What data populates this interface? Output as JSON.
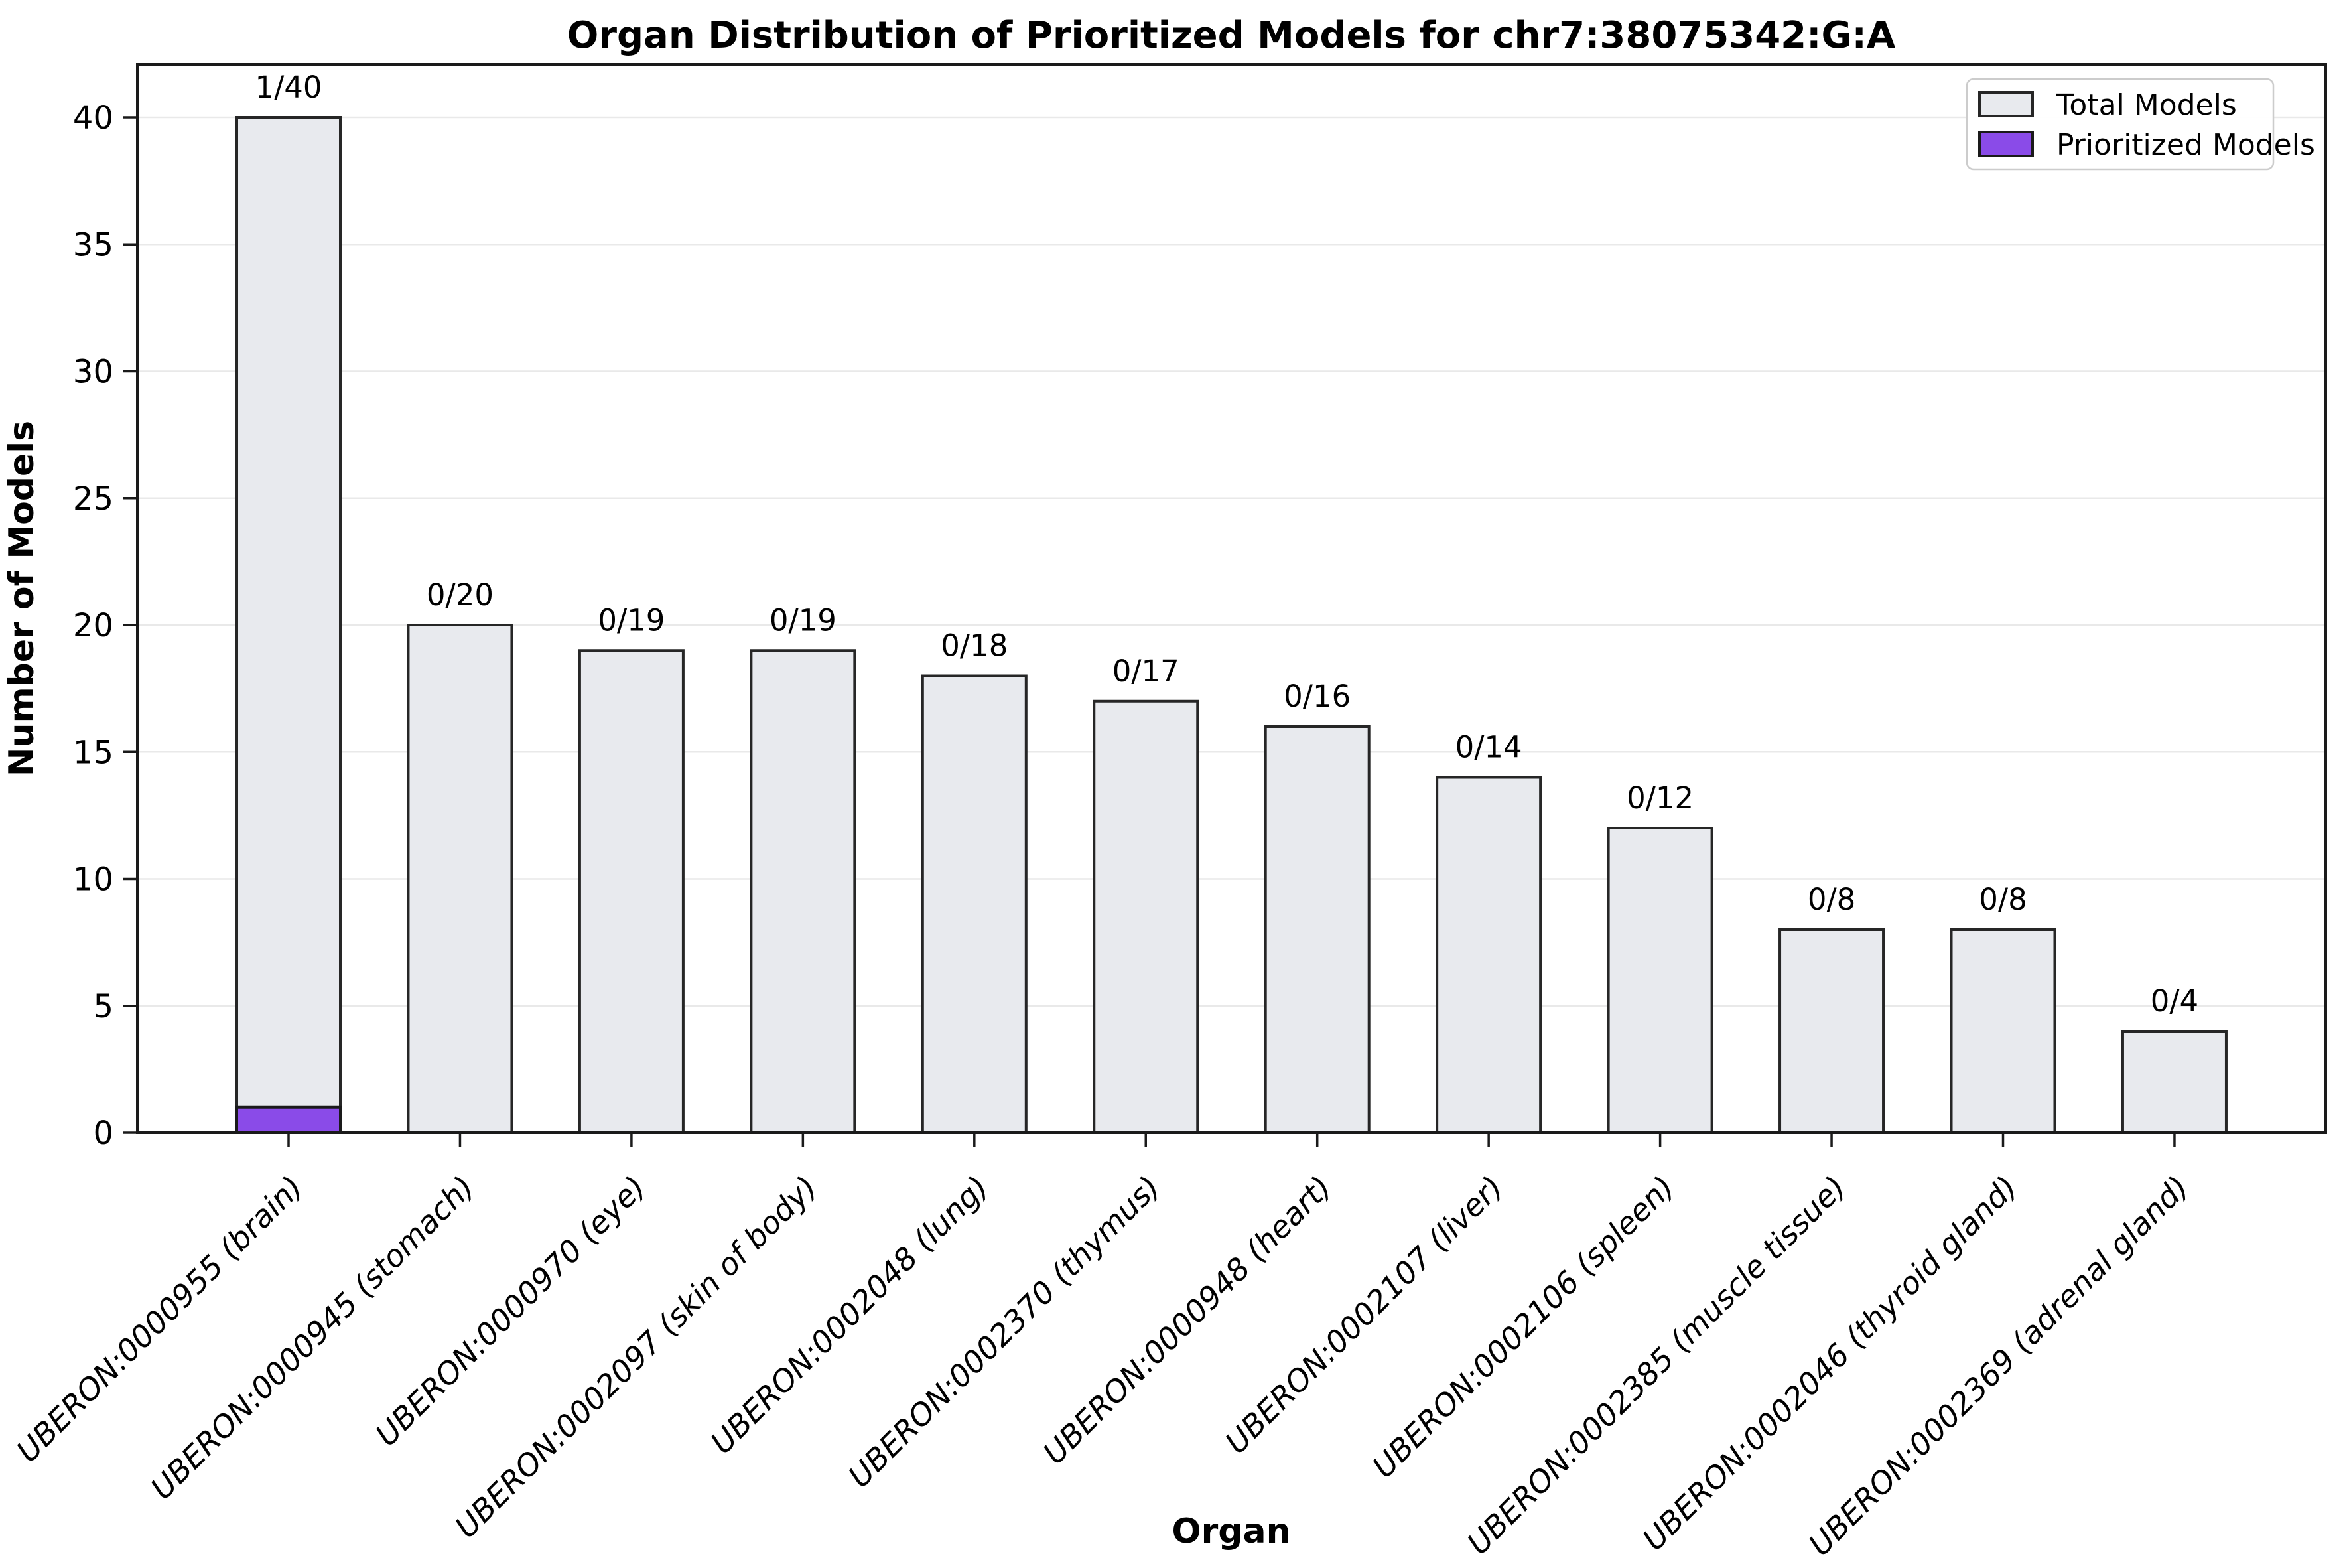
{
  "chart_data": {
    "type": "bar",
    "title": "Organ Distribution of Prioritized Models for chr7:38075342:G:A",
    "xlabel": "Organ",
    "ylabel": "Number of Models",
    "ylim": [
      0,
      42
    ],
    "yticks": [
      0,
      5,
      10,
      15,
      20,
      25,
      30,
      35,
      40
    ],
    "grid": "horizontal",
    "legend_position": "upper right",
    "categories": [
      "UBERON:0000955 (brain)",
      "UBERON:0000945 (stomach)",
      "UBERON:0000970 (eye)",
      "UBERON:0002097 (skin of body)",
      "UBERON:0002048 (lung)",
      "UBERON:0002370 (thymus)",
      "UBERON:0000948 (heart)",
      "UBERON:0002107 (liver)",
      "UBERON:0002106 (spleen)",
      "UBERON:0002385 (muscle tissue)",
      "UBERON:0002046 (thyroid gland)",
      "UBERON:0002369 (adrenal gland)"
    ],
    "series": [
      {
        "name": "Total Models",
        "values": [
          40,
          20,
          19,
          19,
          18,
          17,
          16,
          14,
          12,
          8,
          8,
          4
        ],
        "fill": "#E8EAEE",
        "edge": "#262626"
      },
      {
        "name": "Prioritized Models",
        "values": [
          1,
          0,
          0,
          0,
          0,
          0,
          0,
          0,
          0,
          0,
          0,
          0
        ],
        "fill": "#8A4BE8",
        "edge": "#1A1A1A"
      }
    ],
    "bar_labels": [
      "1/40",
      "0/20",
      "0/19",
      "0/19",
      "0/18",
      "0/17",
      "0/16",
      "0/14",
      "0/12",
      "0/8",
      "0/8",
      "0/4"
    ]
  },
  "colors": {
    "background": "#FFFFFF",
    "gridline": "#E9E9E9",
    "spine": "#1A1A1A",
    "tick": "#1A1A1A",
    "text": "#000000",
    "total_fill": "#E8EAEE",
    "prioritized_fill": "#8A4BE8"
  }
}
